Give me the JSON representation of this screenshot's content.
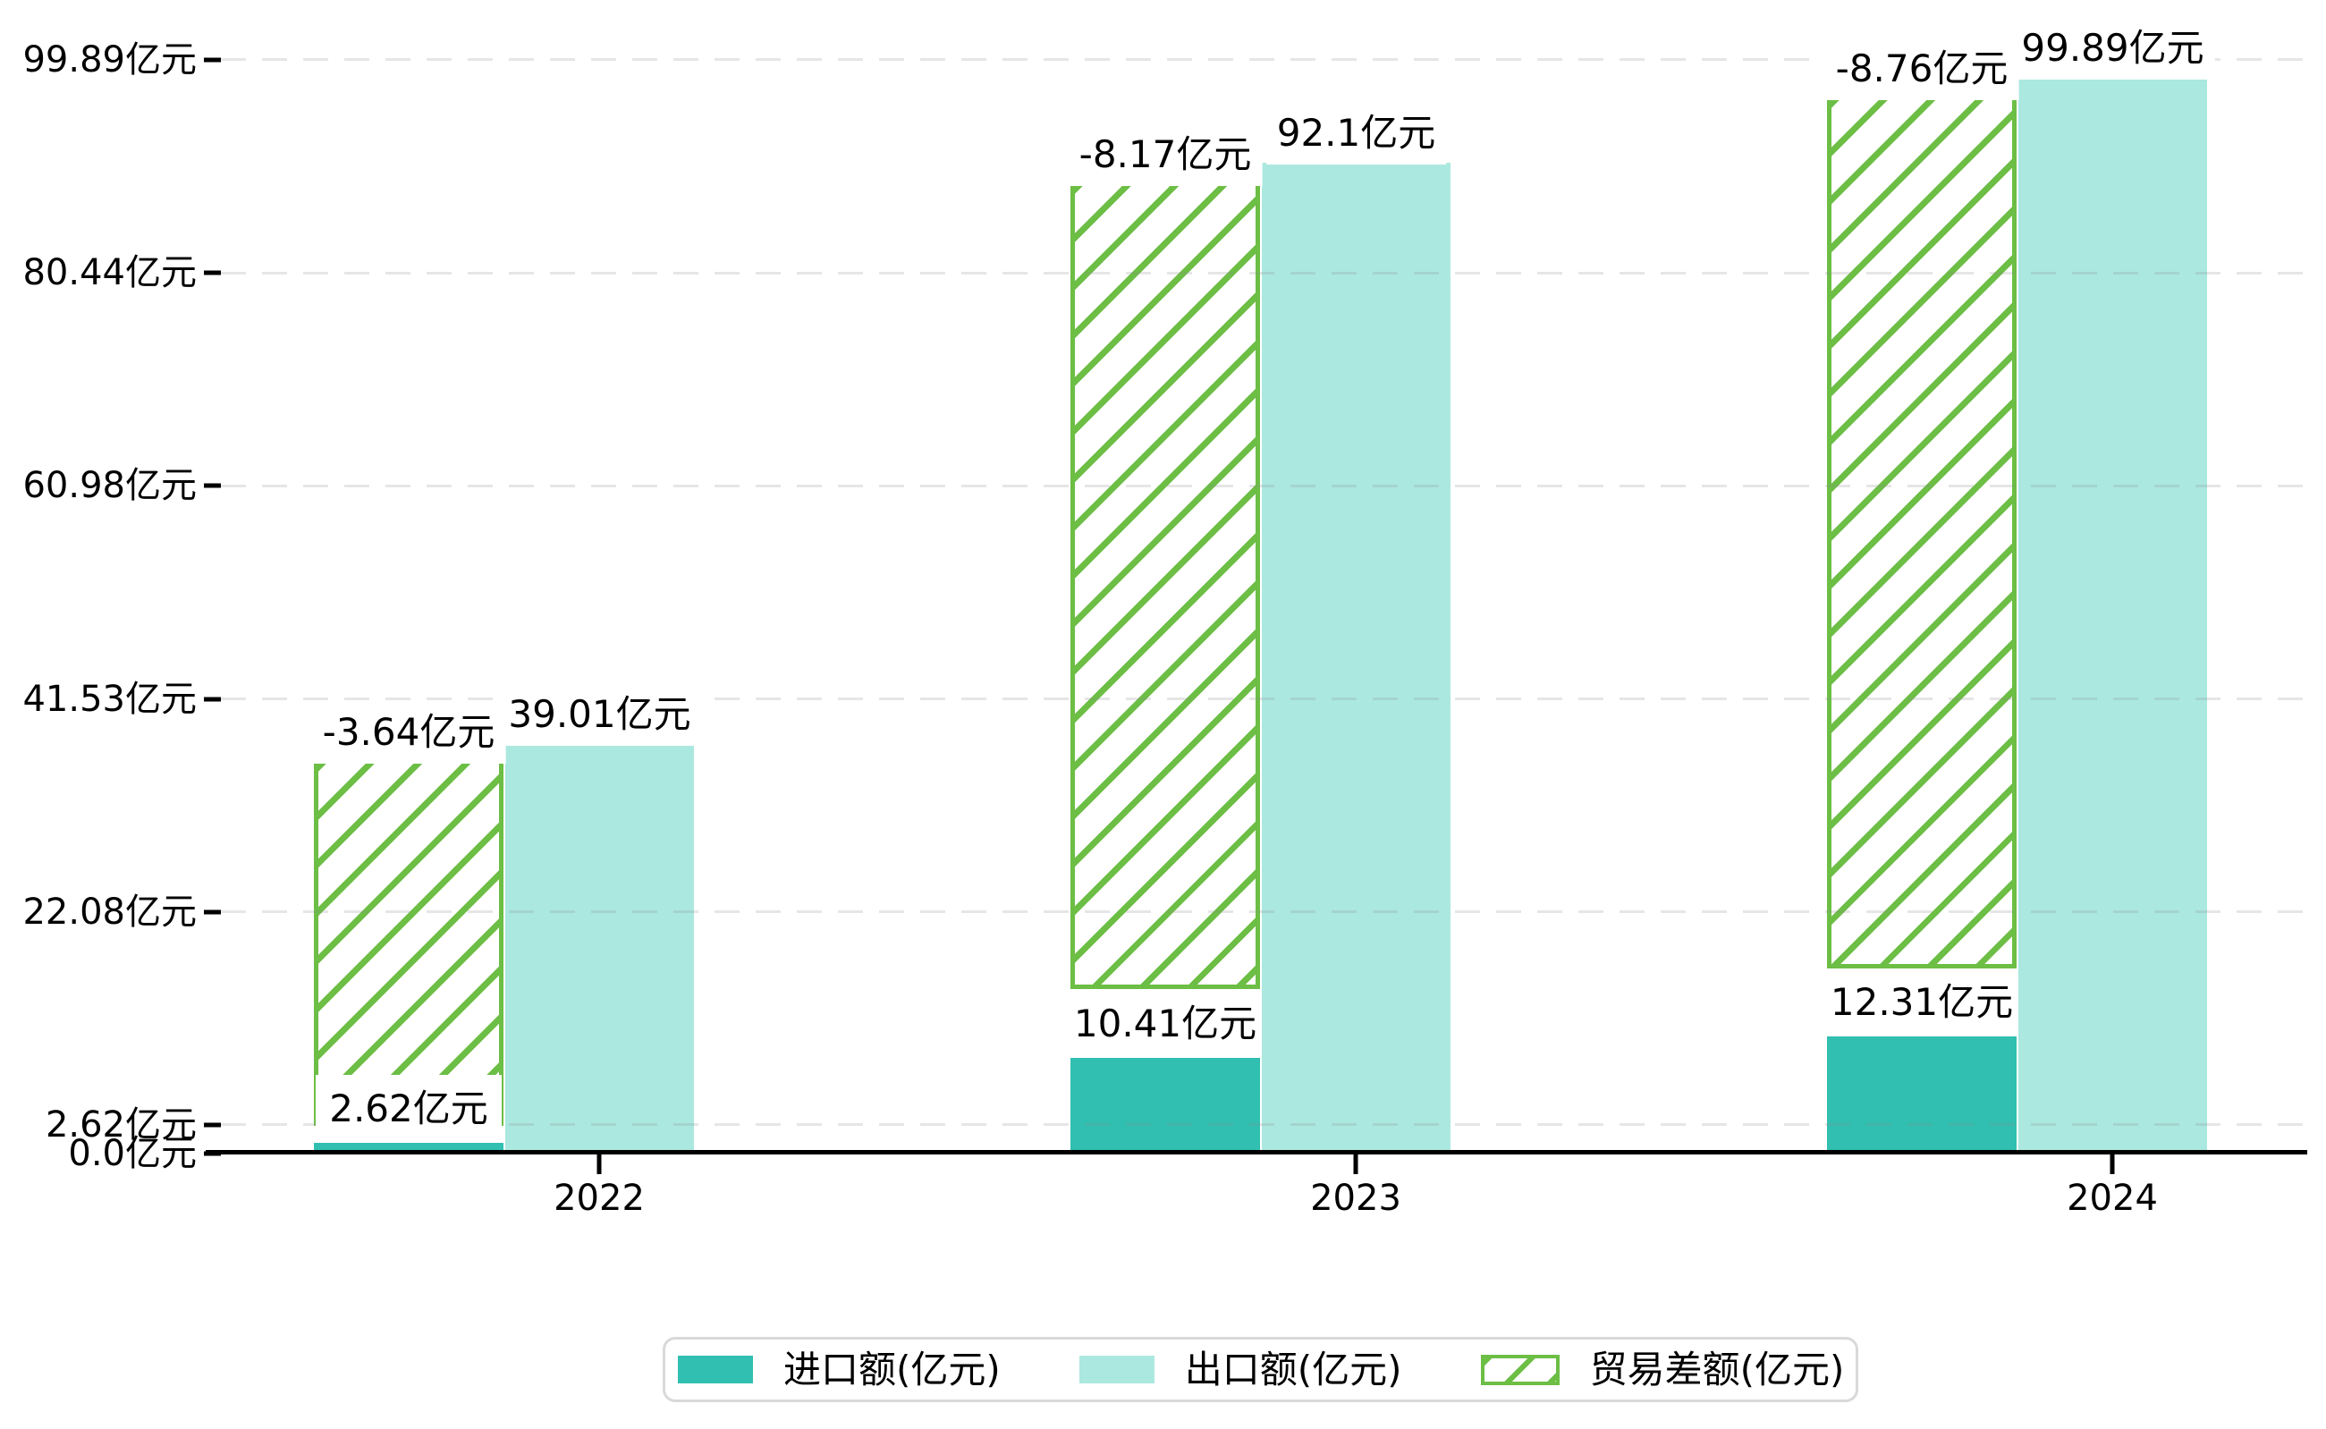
{
  "chart_data": {
    "type": "bar",
    "title": "",
    "categories": [
      "2022",
      "2023",
      "2024"
    ],
    "series": [
      {
        "name": "进口额(亿元)",
        "role": "import",
        "color": "#30bfb0",
        "values": [
          2.62,
          10.41,
          12.31
        ],
        "value_labels": [
          "2.62亿元",
          "10.41亿元",
          "12.31亿元"
        ]
      },
      {
        "name": "出口额(亿元)",
        "role": "export",
        "color": "#abe8e0",
        "values": [
          39.01,
          92.1,
          99.89
        ],
        "value_labels": [
          "39.01亿元",
          "92.1亿元",
          "99.89亿元"
        ]
      },
      {
        "name": "贸易差额(亿元)",
        "role": "trade-balance",
        "color": "#6cbe45",
        "pattern": "diagonal-hatch",
        "values": [
          -3.64,
          -8.17,
          -8.76
        ],
        "value_labels": [
          "-3.64亿元",
          "-8.17亿元",
          "-8.76亿元"
        ],
        "drawn_spans": [
          [
            2.5,
            36.1
          ],
          [
            15.0,
            88.9
          ],
          [
            16.9,
            96.7
          ]
        ]
      }
    ],
    "y_axis": {
      "unit": "亿元",
      "range": [
        0,
        104.5
      ],
      "ticks": [
        {
          "value": 0.0,
          "label": "0.0亿元"
        },
        {
          "value": 2.62,
          "label": "2.62亿元"
        },
        {
          "value": 22.08,
          "label": "22.08亿元"
        },
        {
          "value": 41.53,
          "label": "41.53亿元"
        },
        {
          "value": 60.98,
          "label": "60.98亿元"
        },
        {
          "value": 80.44,
          "label": "80.44亿元"
        },
        {
          "value": 99.89,
          "label": "99.89亿元"
        }
      ]
    },
    "x_axis": {
      "tick_labels": [
        "2022",
        "2023",
        "2024"
      ]
    },
    "grid": {
      "style": "dashed",
      "orientation": "horizontal",
      "color": "#e7e7e7"
    },
    "legend": {
      "position": "bottom-center",
      "items": [
        "进口额(亿元)",
        "出口额(亿元)",
        "贸易差额(亿元)"
      ]
    }
  },
  "colors": {
    "import": "#30bfb0",
    "export": "#abe8e0",
    "trade_balance": "#6cbe45",
    "axis": "#000000",
    "grid": "#e7e7e7",
    "legend_border": "#d9d9d9",
    "label_background": "#ffffff",
    "text": "#000000"
  }
}
